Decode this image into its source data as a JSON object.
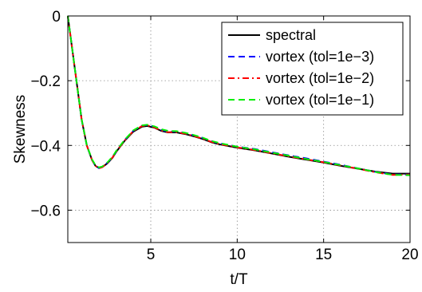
{
  "chart_data": {
    "type": "line",
    "title": "",
    "xlabel": "t/T",
    "ylabel": "Skewness",
    "xlim": [
      0.2,
      20
    ],
    "ylim": [
      -0.7,
      0
    ],
    "grid": true,
    "legend_position": "top-right",
    "xticks": [
      5,
      10,
      15,
      20
    ],
    "xtick_labels": [
      "5",
      "10",
      "15",
      "20"
    ],
    "yticks": [
      0,
      -0.2,
      -0.4,
      -0.6
    ],
    "ytick_labels": [
      "0",
      "−0.2",
      "−0.4",
      "−0.6"
    ],
    "series": [
      {
        "name": "spectral",
        "color": "#000000",
        "style": "solid",
        "x": [
          0.2,
          0.5,
          0.8,
          1.0,
          1.3,
          1.6,
          1.8,
          2.0,
          2.2,
          2.5,
          2.8,
          3.0,
          3.5,
          4.0,
          4.5,
          4.8,
          5.2,
          5.6,
          6.0,
          6.5,
          7.0,
          7.5,
          8.0,
          8.5,
          9.0,
          10.0,
          11.0,
          12.0,
          13.0,
          14.0,
          15.0,
          16.0,
          17.0,
          18.0,
          19.0,
          20.0
        ],
        "y": [
          0.0,
          -0.12,
          -0.24,
          -0.32,
          -0.4,
          -0.445,
          -0.463,
          -0.47,
          -0.467,
          -0.455,
          -0.437,
          -0.42,
          -0.385,
          -0.357,
          -0.342,
          -0.34,
          -0.345,
          -0.355,
          -0.36,
          -0.36,
          -0.365,
          -0.372,
          -0.38,
          -0.39,
          -0.397,
          -0.407,
          -0.415,
          -0.425,
          -0.435,
          -0.444,
          -0.453,
          -0.463,
          -0.472,
          -0.481,
          -0.487,
          -0.487
        ]
      },
      {
        "name": "vortex (tol=1e−3)",
        "color": "#0000ff",
        "style": "dashed",
        "x": [
          0.2,
          0.5,
          0.8,
          1.0,
          1.3,
          1.6,
          1.8,
          2.0,
          2.2,
          2.5,
          2.8,
          3.0,
          3.5,
          4.0,
          4.5,
          4.8,
          5.2,
          5.6,
          6.0,
          6.5,
          7.0,
          7.5,
          8.0,
          8.5,
          9.0,
          10.0,
          11.0,
          12.0,
          13.0,
          14.0,
          15.0,
          16.0,
          17.0,
          18.0,
          19.0,
          20.0
        ],
        "y": [
          0.0,
          -0.12,
          -0.24,
          -0.32,
          -0.4,
          -0.445,
          -0.463,
          -0.47,
          -0.466,
          -0.453,
          -0.435,
          -0.418,
          -0.383,
          -0.354,
          -0.339,
          -0.337,
          -0.342,
          -0.352,
          -0.357,
          -0.357,
          -0.362,
          -0.369,
          -0.377,
          -0.387,
          -0.394,
          -0.404,
          -0.411,
          -0.421,
          -0.431,
          -0.44,
          -0.45,
          -0.46,
          -0.471,
          -0.482,
          -0.49,
          -0.49
        ]
      },
      {
        "name": "vortex (tol=1e−2)",
        "color": "#ff0000",
        "style": "dashdot",
        "x": [
          0.2,
          0.5,
          0.8,
          1.0,
          1.3,
          1.6,
          1.8,
          2.0,
          2.2,
          2.5,
          2.8,
          3.0,
          3.5,
          4.0,
          4.5,
          4.8,
          5.2,
          5.6,
          6.0,
          6.5,
          7.0,
          7.5,
          8.0,
          8.5,
          9.0,
          10.0,
          11.0,
          12.0,
          13.0,
          14.0,
          15.0,
          16.0,
          17.0,
          18.0,
          19.0,
          20.0
        ],
        "y": [
          0.0,
          -0.12,
          -0.24,
          -0.32,
          -0.4,
          -0.445,
          -0.463,
          -0.471,
          -0.467,
          -0.454,
          -0.436,
          -0.419,
          -0.384,
          -0.355,
          -0.34,
          -0.338,
          -0.344,
          -0.354,
          -0.359,
          -0.359,
          -0.364,
          -0.371,
          -0.379,
          -0.389,
          -0.396,
          -0.406,
          -0.414,
          -0.424,
          -0.434,
          -0.443,
          -0.452,
          -0.462,
          -0.472,
          -0.483,
          -0.491,
          -0.49
        ]
      },
      {
        "name": "vortex (tol=1e−1)",
        "color": "#00ee00",
        "style": "dashed",
        "x": [
          0.2,
          0.5,
          0.8,
          1.0,
          1.3,
          1.6,
          1.8,
          2.0,
          2.2,
          2.5,
          2.8,
          3.0,
          3.5,
          4.0,
          4.5,
          4.8,
          5.2,
          5.6,
          6.0,
          6.5,
          7.0,
          7.5,
          8.0,
          8.5,
          9.0,
          10.0,
          11.0,
          12.0,
          13.0,
          14.0,
          15.0,
          16.0,
          17.0,
          18.0,
          19.0,
          20.0
        ],
        "y": [
          0.0,
          -0.12,
          -0.24,
          -0.32,
          -0.4,
          -0.443,
          -0.461,
          -0.468,
          -0.465,
          -0.452,
          -0.434,
          -0.417,
          -0.382,
          -0.353,
          -0.338,
          -0.336,
          -0.341,
          -0.35,
          -0.355,
          -0.356,
          -0.361,
          -0.368,
          -0.376,
          -0.386,
          -0.393,
          -0.404,
          -0.412,
          -0.422,
          -0.432,
          -0.442,
          -0.451,
          -0.461,
          -0.471,
          -0.482,
          -0.491,
          -0.492
        ]
      }
    ]
  }
}
